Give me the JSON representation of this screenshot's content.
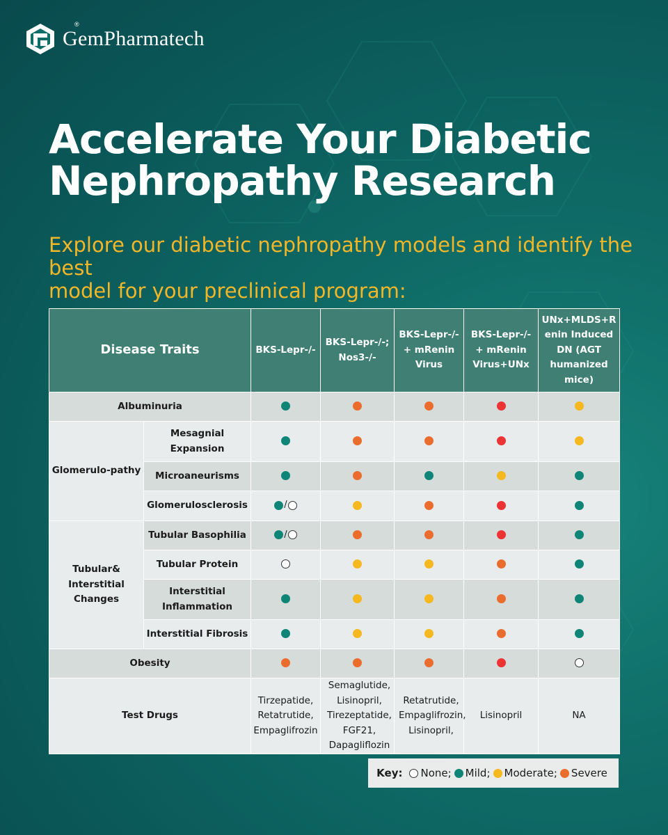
{
  "brand": {
    "name": "GemPharmatech",
    "reg_mark": "®"
  },
  "headline": {
    "line1": "Accelerate Your Diabetic",
    "line2": "Nephropathy Research"
  },
  "subhead": {
    "line1": "Explore our diabetic nephropathy models and identify the best",
    "line2": "model for your preclinical program:"
  },
  "colors": {
    "mild": "#0e8577",
    "moderate": "#f5b81f",
    "severe": "#eb6d2e",
    "extreme": "#ee3335",
    "subhead": "#f2b629",
    "header": "#3f7f74"
  },
  "table": {
    "header": {
      "traits": "Disease Traits",
      "models": [
        "BKS-Lepr-/-",
        "BKS-Lepr-/-;\nNos3-/-",
        "BKS-Lepr-/-\n+ mRenin\nVirus",
        "BKS-Lepr-/-\n+ mRenin\nVirus+UNx",
        "UNx+MLDS+R\nenin Induced\nDN (AGT\nhumanized\nmice)"
      ]
    },
    "groups": {
      "glomerulo": "Glomerulo-pathy",
      "tubular": "Tubular&\nInterstitial\nChanges"
    },
    "rows": [
      {
        "label": "Albuminuria",
        "values": [
          "mild",
          "severe",
          "severe",
          "extreme",
          "moderate"
        ]
      },
      {
        "label": "Mesagnial\nExpansion",
        "values": [
          "mild",
          "severe",
          "severe",
          "extreme",
          "moderate"
        ]
      },
      {
        "label": "Microaneurisms",
        "values": [
          "mild",
          "severe",
          "mild",
          "moderate",
          "mild"
        ]
      },
      {
        "label": "Glomerulosclerosis",
        "values": [
          "mild/none",
          "moderate",
          "severe",
          "extreme",
          "mild"
        ]
      },
      {
        "label": "Tubular Basophilia",
        "values": [
          "mild/none",
          "severe",
          "severe",
          "extreme",
          "mild"
        ]
      },
      {
        "label": "Tubular Protein",
        "values": [
          "none",
          "moderate",
          "moderate",
          "severe",
          "mild"
        ]
      },
      {
        "label": "Interstitial\nInflammation",
        "values": [
          "mild",
          "moderate",
          "moderate",
          "severe",
          "mild"
        ]
      },
      {
        "label": "Interstitial Fibrosis",
        "values": [
          "mild",
          "moderate",
          "moderate",
          "severe",
          "mild"
        ]
      },
      {
        "label": "Obesity",
        "values": [
          "severe",
          "severe",
          "severe",
          "extreme",
          "none"
        ]
      }
    ],
    "slash": "/",
    "drugs": {
      "label": "Test Drugs",
      "values": [
        "Tirzepatide,\nRetatrutide,\nEmpaglifrozin",
        "Semaglutide,\nLisinopril,\nTirezeptatide,\nFGF21,\nDapagliflozin",
        "Retatrutide,\nEmpaglifrozin,\nLisinopril,",
        "Lisinopril",
        "NA"
      ]
    }
  },
  "key": {
    "title": "Key:",
    "items": [
      {
        "level": "none",
        "label": "None;"
      },
      {
        "level": "mild",
        "label": "Mild;"
      },
      {
        "level": "moderate",
        "label": "Moderate;"
      },
      {
        "level": "severe",
        "label": "Severe"
      }
    ]
  }
}
